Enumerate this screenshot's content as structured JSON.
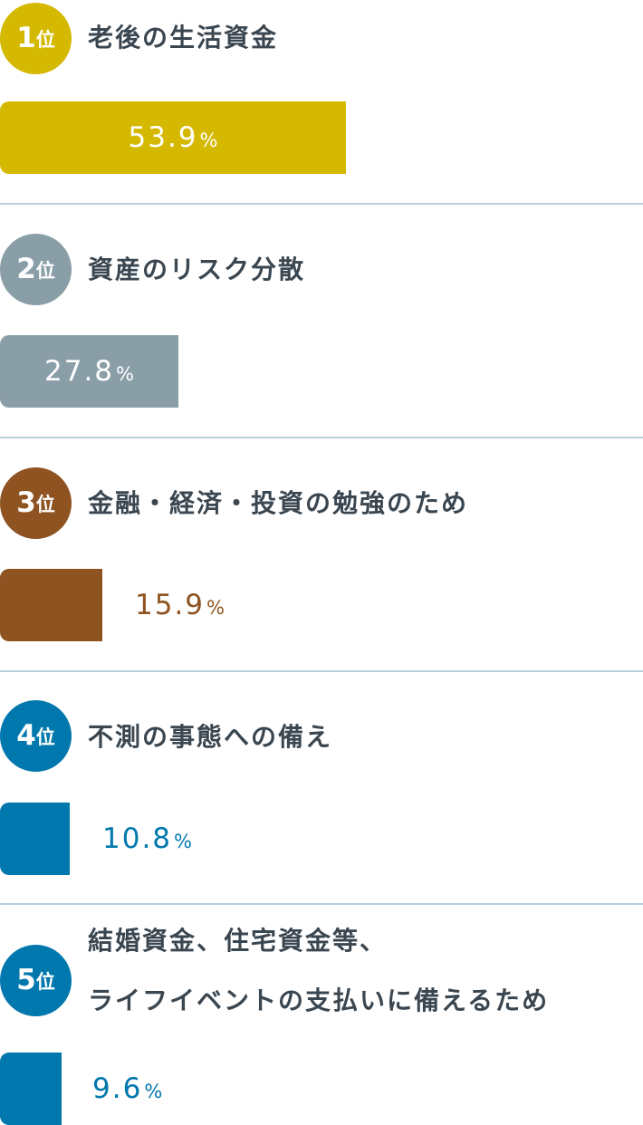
{
  "rank_suffix": "位",
  "percent_suffix": "%",
  "chart_data": {
    "type": "bar",
    "orientation": "horizontal",
    "categories": [
      "老後の生活資金",
      "資産のリスク分散",
      "金融・経済・投資の勉強のため",
      "不測の事態への備え",
      "結婚資金、住宅資金等、ライフイベントの支払いに備えるため"
    ],
    "values": [
      53.9,
      27.8,
      15.9,
      10.8,
      9.6
    ],
    "unit": "%",
    "ranks": [
      "1",
      "2",
      "3",
      "4",
      "5"
    ],
    "label_lines": [
      [
        "老後の生活資金"
      ],
      [
        "資産のリスク分散"
      ],
      [
        "金融・経済・投資の勉強のため"
      ],
      [
        "不測の事態への備え"
      ],
      [
        "結婚資金、住宅資金等、",
        "ライフイベントの支払いに備えるため"
      ]
    ],
    "value_labels": [
      "53.9",
      "27.8",
      "15.9",
      "10.8",
      "9.6"
    ],
    "colors": [
      "#d4b900",
      "#8a9ea8",
      "#8e5320",
      "#0178ad",
      "#0178ad"
    ],
    "value_label_colors": [
      "#ffffff",
      "#ffffff",
      "#8e5320",
      "#0178ad",
      "#0178ad"
    ],
    "value_label_position": [
      "inside",
      "inside",
      "outside",
      "outside",
      "outside"
    ],
    "xlim": [
      0,
      100
    ]
  }
}
